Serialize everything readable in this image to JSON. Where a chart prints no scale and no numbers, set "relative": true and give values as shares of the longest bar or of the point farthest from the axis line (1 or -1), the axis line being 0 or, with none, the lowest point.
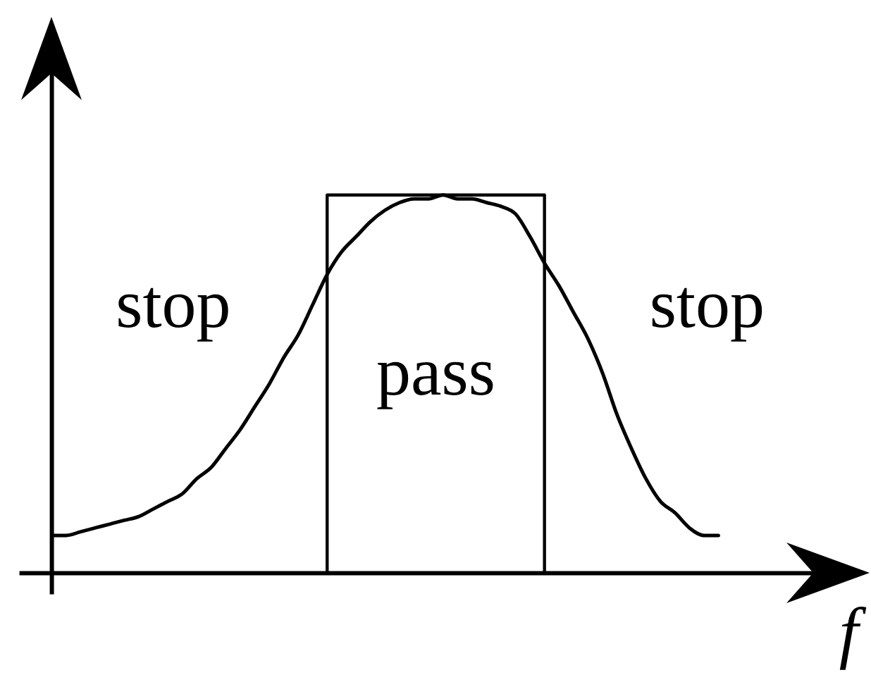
{
  "chart_data": {
    "type": "line",
    "relative": true,
    "xlabel": "f",
    "categories": [
      null,
      null,
      null,
      null,
      null,
      null,
      null,
      null,
      null,
      null,
      null,
      null,
      null,
      null,
      null,
      null,
      null,
      null,
      null,
      null,
      null,
      null,
      null,
      null,
      null,
      null,
      null,
      null,
      null,
      null,
      null,
      null,
      null,
      null,
      null,
      null,
      null,
      null,
      null,
      null,
      null,
      null,
      null,
      null,
      null,
      null,
      null
    ],
    "series": [
      {
        "color": "#000000",
        "values": [
          0.1,
          0.1,
          0.11,
          0.12,
          0.13,
          0.14,
          0.15,
          0.17,
          0.19,
          0.21,
          0.25,
          0.28,
          0.33,
          0.38,
          0.44,
          0.5,
          0.57,
          0.63,
          0.71,
          0.79,
          0.85,
          0.89,
          0.93,
          0.96,
          0.98,
          0.99,
          0.99,
          1.0,
          0.99,
          0.99,
          0.98,
          0.97,
          0.95,
          0.89,
          0.82,
          0.76,
          0.69,
          0.62,
          0.53,
          0.42,
          0.33,
          0.25,
          0.19,
          0.16,
          0.12,
          0.1,
          0.1
        ]
      },
      {
        "type": "step",
        "color": "#000000",
        "values": [
          null,
          null,
          null,
          null,
          null,
          null,
          null,
          null,
          null,
          null,
          null,
          null,
          null,
          null,
          null,
          null,
          null,
          null,
          null,
          0,
          1,
          1,
          1,
          1,
          1,
          1,
          1,
          1,
          1,
          1,
          1,
          1,
          1,
          1,
          1,
          0,
          null,
          null,
          null,
          null,
          null,
          null,
          null,
          null,
          null,
          null,
          null
        ]
      }
    ],
    "annotations": [
      "stop",
      "pass",
      "stop"
    ]
  }
}
